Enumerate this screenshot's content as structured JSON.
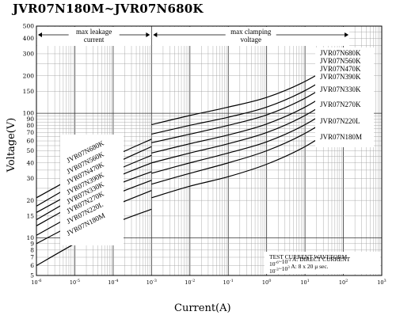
{
  "title": "JVR07N180M~JVR07N680K",
  "chart_data": {
    "type": "line",
    "xlabel": "Current(A)",
    "ylabel": "Voltage(V)",
    "x_scale": "log",
    "y_scale": "log",
    "xlim": [
      1e-06,
      1000
    ],
    "ylim": [
      5,
      500
    ],
    "x_tick_exponents": [
      -6,
      -5,
      -4,
      -3,
      -2,
      -1,
      0,
      1,
      2,
      3
    ],
    "y_ticks": [
      5,
      6,
      7,
      8,
      9,
      10,
      15,
      20,
      30,
      40,
      50,
      60,
      70,
      80,
      90,
      100,
      150,
      200,
      300,
      400,
      500
    ],
    "grid": true,
    "regions": [
      {
        "label": "max leakage\ncurrent",
        "x_from": 1e-06,
        "x_to": 0.001
      },
      {
        "label": "max clamping\nvoltage",
        "x_from": 0.001,
        "x_to": 150
      }
    ],
    "series": [
      {
        "name": "JVR07N680K",
        "leakage": [
          [
            1e-06,
            21
          ],
          [
            1e-05,
            31
          ],
          [
            0.0001,
            45
          ],
          [
            0.001,
            62
          ]
        ],
        "clamping": [
          [
            0.001,
            81
          ],
          [
            0.01,
            96
          ],
          [
            0.1,
            112
          ],
          [
            1,
            134
          ],
          [
            10,
            180
          ],
          [
            100,
            275
          ],
          [
            150,
            310
          ]
        ]
      },
      {
        "name": "JVR07N560K",
        "leakage": [
          [
            1e-06,
            18
          ],
          [
            1e-05,
            27
          ],
          [
            0.0001,
            39
          ],
          [
            0.001,
            54
          ]
        ],
        "clamping": [
          [
            0.001,
            68
          ],
          [
            0.01,
            80
          ],
          [
            0.1,
            93
          ],
          [
            1,
            112
          ],
          [
            10,
            152
          ],
          [
            100,
            235
          ],
          [
            150,
            265
          ]
        ]
      },
      {
        "name": "JVR07N470K",
        "leakage": [
          [
            1e-06,
            16
          ],
          [
            1e-05,
            23.5
          ],
          [
            0.0001,
            34
          ],
          [
            0.001,
            46
          ]
        ],
        "clamping": [
          [
            0.001,
            58
          ],
          [
            0.01,
            68
          ],
          [
            0.1,
            80
          ],
          [
            1,
            97
          ],
          [
            10,
            132
          ],
          [
            100,
            205
          ],
          [
            150,
            230
          ]
        ]
      },
      {
        "name": "JVR07N390K",
        "leakage": [
          [
            1e-06,
            14
          ],
          [
            1e-05,
            21
          ],
          [
            0.0001,
            30
          ],
          [
            0.001,
            40
          ]
        ],
        "clamping": [
          [
            0.001,
            48
          ],
          [
            0.01,
            57
          ],
          [
            0.1,
            67
          ],
          [
            1,
            82
          ],
          [
            10,
            112
          ],
          [
            100,
            175
          ],
          [
            150,
            197
          ]
        ]
      },
      {
        "name": "JVR07N330K",
        "leakage": [
          [
            1e-06,
            12.5
          ],
          [
            1e-05,
            18.5
          ],
          [
            0.0001,
            26
          ],
          [
            0.001,
            34
          ]
        ],
        "clamping": [
          [
            0.001,
            40
          ],
          [
            0.01,
            48
          ],
          [
            0.1,
            57
          ],
          [
            1,
            70
          ],
          [
            10,
            96
          ],
          [
            100,
            150
          ],
          [
            150,
            168
          ]
        ]
      },
      {
        "name": "JVR07N270K",
        "leakage": [
          [
            1e-06,
            10.5
          ],
          [
            1e-05,
            15.5
          ],
          [
            0.0001,
            22
          ],
          [
            0.001,
            29
          ]
        ],
        "clamping": [
          [
            0.001,
            33
          ],
          [
            0.01,
            40
          ],
          [
            0.1,
            48
          ],
          [
            1,
            59
          ],
          [
            10,
            81
          ],
          [
            100,
            127
          ],
          [
            150,
            143
          ]
        ]
      },
      {
        "name": "JVR07N220L",
        "leakage": [
          [
            1e-06,
            9
          ],
          [
            1e-05,
            13
          ],
          [
            0.0001,
            18
          ],
          [
            0.001,
            24
          ]
        ],
        "clamping": [
          [
            0.001,
            27
          ],
          [
            0.01,
            33
          ],
          [
            0.1,
            40
          ],
          [
            1,
            50
          ],
          [
            10,
            69
          ],
          [
            100,
            108
          ],
          [
            150,
            122
          ]
        ]
      },
      {
        "name": "JVR07N180M",
        "leakage": [
          [
            1e-06,
            6
          ],
          [
            1e-05,
            9
          ],
          [
            0.0001,
            13
          ],
          [
            0.001,
            17
          ]
        ],
        "clamping": [
          [
            0.001,
            21
          ],
          [
            0.01,
            26
          ],
          [
            0.1,
            31
          ],
          [
            1,
            39
          ],
          [
            10,
            54
          ],
          [
            100,
            85
          ],
          [
            150,
            95
          ]
        ]
      }
    ],
    "annotation": [
      "TEST CURRENT WAVEFORM",
      "10^-6~10^-3 A: DIRECT CURRENT",
      "10^-3~10^3 A: 8 x 20 μ sec."
    ]
  }
}
